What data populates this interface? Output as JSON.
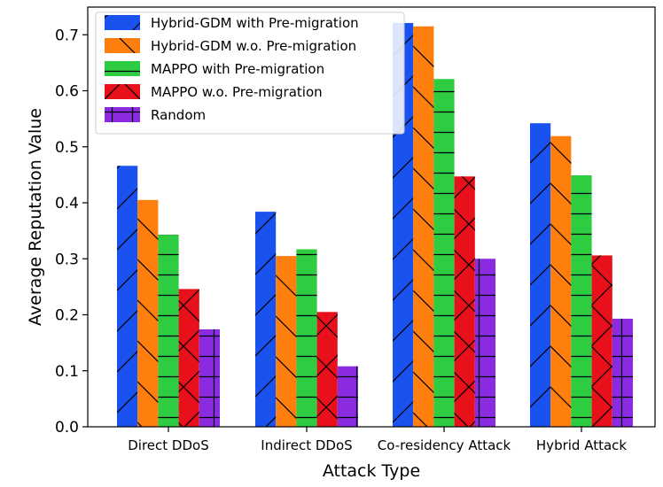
{
  "chart_data": {
    "type": "bar",
    "title": "",
    "xlabel": "Attack Type",
    "ylabel": "Average Reputation Value",
    "ylim": [
      0,
      0.75
    ],
    "yticks": [
      "0.0",
      "0.1",
      "0.2",
      "0.3",
      "0.4",
      "0.5",
      "0.6",
      "0.7"
    ],
    "categories": [
      "Direct DDoS",
      "Indirect DDoS",
      "Co-residency Attack",
      "Hybrid Attack"
    ],
    "legend_position": "top-left",
    "grid": false,
    "series": [
      {
        "name": "Hybrid-GDM with Pre-migration",
        "color": "#1a52f0",
        "hatch": "slash",
        "values": [
          0.466,
          0.384,
          0.721,
          0.542
        ]
      },
      {
        "name": "Hybrid-GDM w.o. Pre-migration",
        "color": "#ff7f0e",
        "hatch": "backslash",
        "values": [
          0.405,
          0.305,
          0.715,
          0.519
        ]
      },
      {
        "name": "MAPPO with Pre-migration",
        "color": "#2ecc40",
        "hatch": "horizontal",
        "values": [
          0.343,
          0.317,
          0.621,
          0.449
        ]
      },
      {
        "name": "MAPPO w.o. Pre-migration",
        "color": "#e8101a",
        "hatch": "cross",
        "values": [
          0.246,
          0.205,
          0.447,
          0.306
        ]
      },
      {
        "name": "Random",
        "color": "#8a2be2",
        "hatch": "plus",
        "values": [
          0.174,
          0.108,
          0.3,
          0.193
        ]
      }
    ]
  }
}
